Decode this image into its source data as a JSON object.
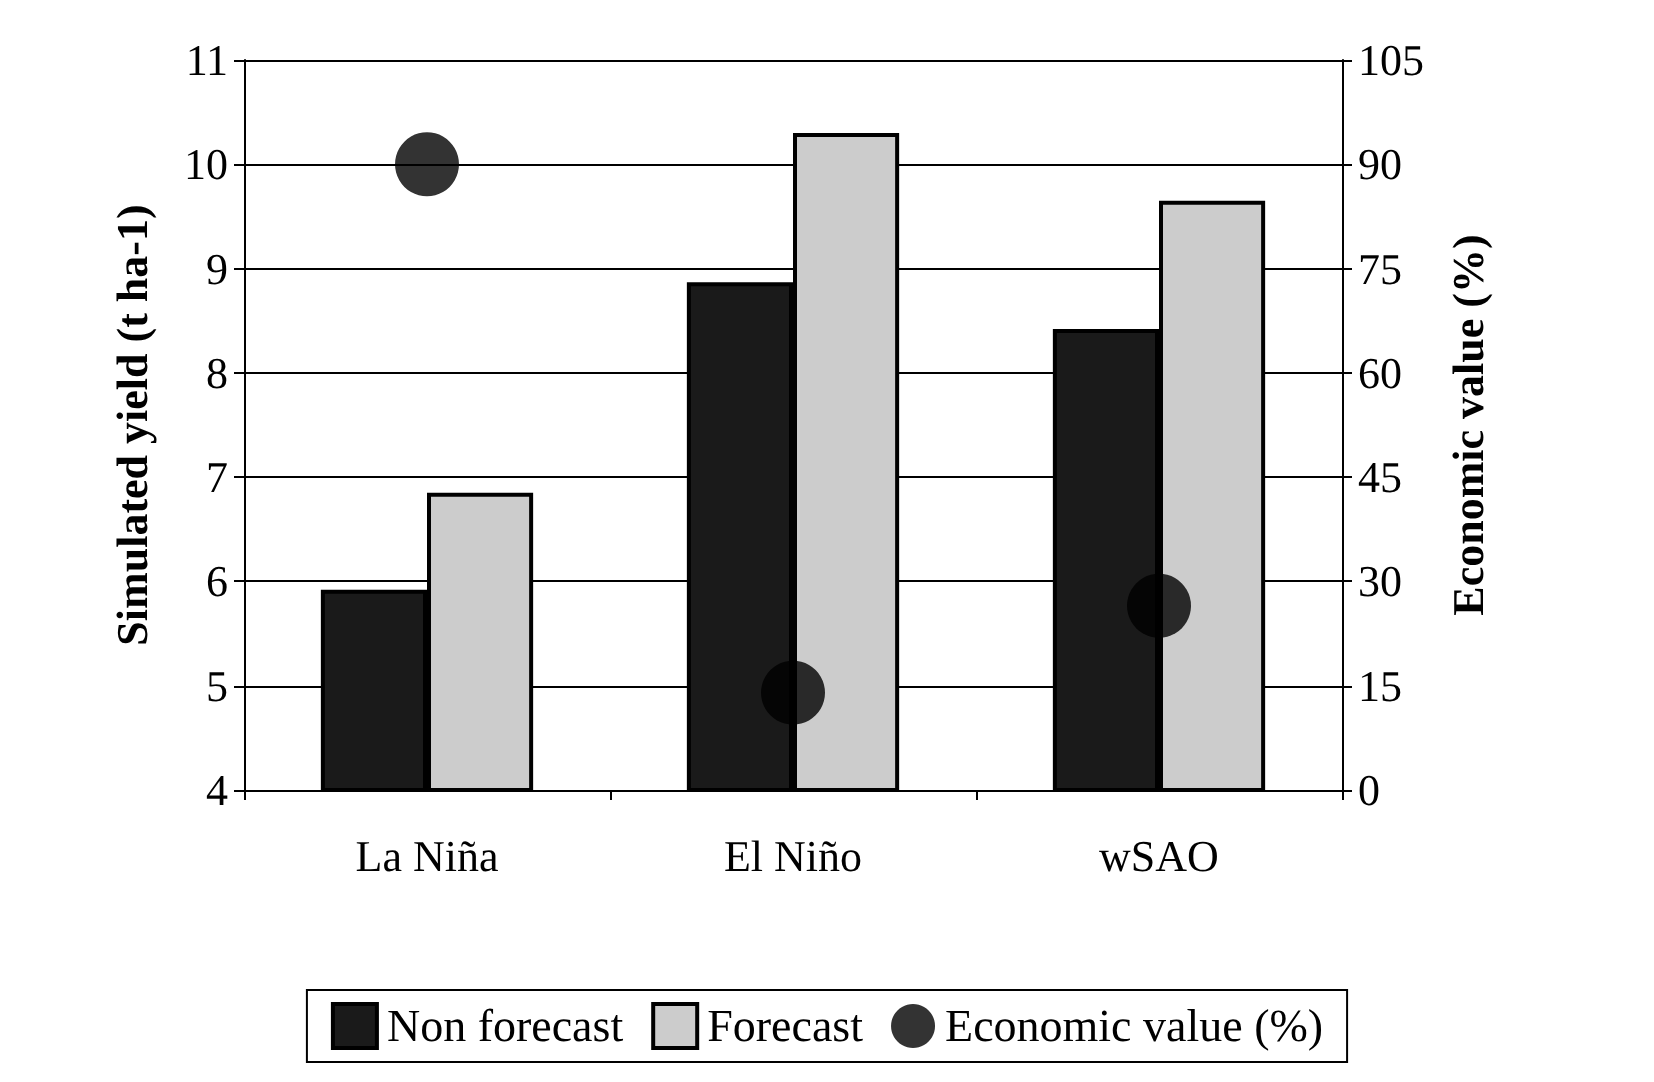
{
  "chart_data": {
    "type": "bar",
    "categories": [
      "La Niña",
      "El Niño",
      "wSAO"
    ],
    "series": [
      {
        "name": "Non forecast",
        "color": "#1a1a1a",
        "values": [
          5.92,
          8.87,
          8.42
        ]
      },
      {
        "name": "Forecast",
        "color": "#cccccc",
        "values": [
          6.85,
          10.3,
          9.65
        ]
      },
      {
        "name": "Economic value (%)",
        "type": "scatter",
        "axis": "y2",
        "color": "#000000",
        "values": [
          90,
          14,
          26.5
        ]
      }
    ],
    "ylabel": "Simulated yield (t ha-1)",
    "y2label": "Economic value (%)",
    "ylim": [
      4,
      11
    ],
    "yticks": [
      4,
      5,
      6,
      7,
      8,
      9,
      10,
      11
    ],
    "y2lim": [
      0,
      105
    ],
    "y2ticks": [
      0,
      15,
      30,
      45,
      60,
      75,
      90,
      105
    ],
    "grid": "y",
    "legend": "bottom",
    "marker": "circle"
  }
}
